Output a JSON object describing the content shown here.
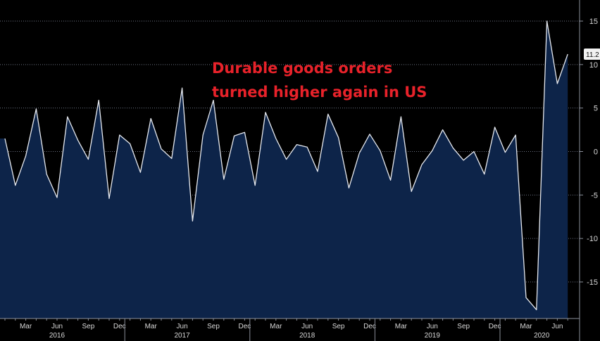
{
  "chart_data": {
    "type": "area",
    "annotation": [
      "Durable goods orders",
      "turned higher again in US"
    ],
    "last_value_label": "11.2",
    "ylim": [
      -19,
      16
    ],
    "yticks": [
      15,
      10,
      5,
      0,
      -5,
      -10,
      -15
    ],
    "month_ticks": [
      {
        "label": "Mar",
        "index": 2
      },
      {
        "label": "Jun",
        "index": 5
      },
      {
        "label": "Sep",
        "index": 8
      },
      {
        "label": "Dec",
        "index": 11
      },
      {
        "label": "Mar",
        "index": 14
      },
      {
        "label": "Jun",
        "index": 17
      },
      {
        "label": "Sep",
        "index": 20
      },
      {
        "label": "Dec",
        "index": 23
      },
      {
        "label": "Mar",
        "index": 26
      },
      {
        "label": "Jun",
        "index": 29
      },
      {
        "label": "Sep",
        "index": 32
      },
      {
        "label": "Dec",
        "index": 35
      },
      {
        "label": "Mar",
        "index": 38
      },
      {
        "label": "Jun",
        "index": 41
      },
      {
        "label": "Sep",
        "index": 44
      },
      {
        "label": "Dec",
        "index": 47
      },
      {
        "label": "Mar",
        "index": 50
      },
      {
        "label": "Jun",
        "index": 53
      }
    ],
    "year_labels": [
      {
        "label": "2016",
        "index": 5
      },
      {
        "label": "2017",
        "index": 17
      },
      {
        "label": "2018",
        "index": 29
      },
      {
        "label": "2019",
        "index": 41
      },
      {
        "label": "2020",
        "index": 51.5
      }
    ],
    "colors": {
      "line": "#e6e9ef",
      "fill": "#0d2449",
      "grid": "#6a7080",
      "text": "#d8d8d8",
      "annotation": "#e8222a"
    },
    "series": [
      {
        "x": [
          "2016-01",
          "2016-02",
          "2016-03",
          "2016-04",
          "2016-05",
          "2016-06",
          "2016-07",
          "2016-08",
          "2016-09",
          "2016-10",
          "2016-11",
          "2016-12",
          "2017-01",
          "2017-02",
          "2017-03",
          "2017-04",
          "2017-05",
          "2017-06",
          "2017-07",
          "2017-08",
          "2017-09",
          "2017-10",
          "2017-11",
          "2017-12",
          "2018-01",
          "2018-02",
          "2018-03",
          "2018-04",
          "2018-05",
          "2018-06",
          "2018-07",
          "2018-08",
          "2018-09",
          "2018-10",
          "2018-11",
          "2018-12",
          "2019-01",
          "2019-02",
          "2019-03",
          "2019-04",
          "2019-05",
          "2019-06",
          "2019-07",
          "2019-08",
          "2019-09",
          "2019-10",
          "2019-11",
          "2019-12",
          "2020-01",
          "2020-02",
          "2020-03",
          "2020-04",
          "2020-05",
          "2020-06",
          "2020-07"
        ],
        "values": [
          1.5,
          -3.9,
          -0.5,
          4.9,
          -2.6,
          -5.3,
          4.0,
          1.3,
          -0.9,
          5.9,
          -5.4,
          1.9,
          0.9,
          -2.4,
          3.8,
          0.3,
          -0.8,
          7.3,
          -8.0,
          1.9,
          5.9,
          -3.2,
          1.8,
          2.2,
          -3.9,
          4.5,
          1.5,
          -0.9,
          0.8,
          0.5,
          -2.3,
          4.3,
          1.6,
          -4.2,
          -0.2,
          2.0,
          0.1,
          -3.3,
          4.0,
          -4.6,
          -1.5,
          0.1,
          2.5,
          0.4,
          -1.0,
          -0.0,
          -2.6,
          2.8,
          -0.1,
          1.9,
          -16.8,
          -18.2,
          15.0,
          7.8,
          11.2
        ]
      }
    ]
  }
}
